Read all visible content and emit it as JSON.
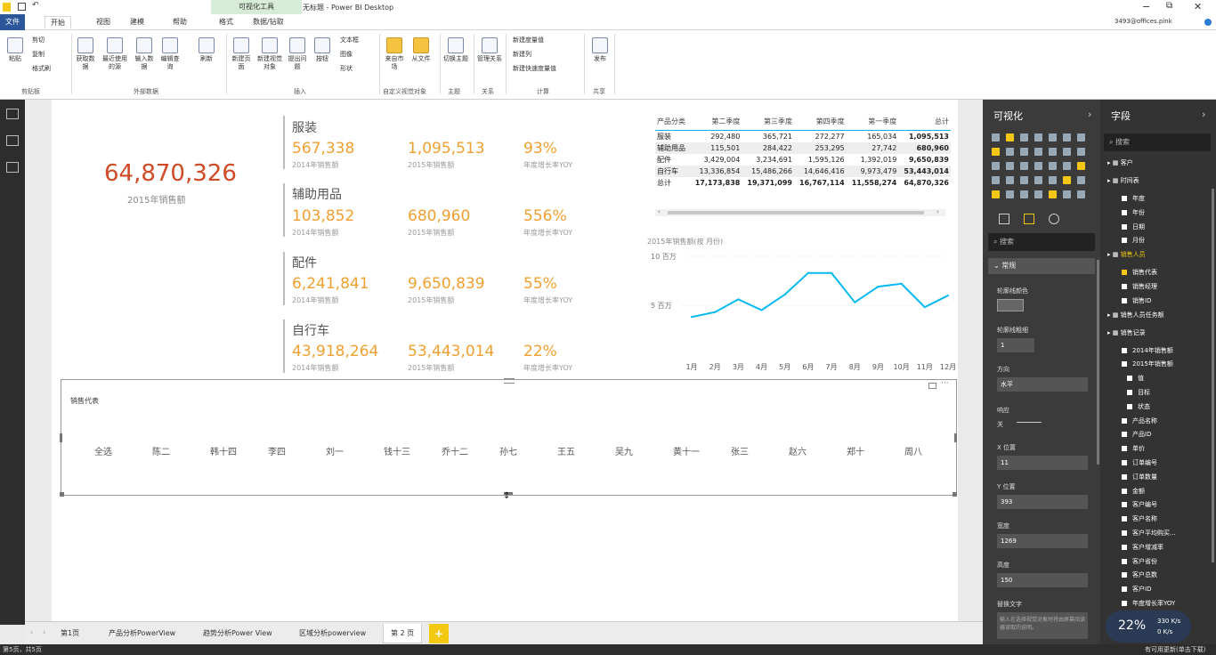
{
  "window": {
    "title": "无标题 - Power BI Desktop",
    "tools_label": "可视化工具",
    "user": "3493@offices.pink",
    "minimize": "−",
    "restore": "⧉",
    "close": "✕"
  },
  "ribbon_tabs": [
    "文件",
    "开始",
    "视图",
    "建模",
    "帮助",
    "格式",
    "数据/钻取"
  ],
  "ribbon": {
    "clipboard": {
      "paste": "粘贴",
      "cut": "剪切",
      "copy": "复制",
      "format_painter": "格式刷",
      "group": "剪贴板"
    },
    "external": {
      "get_data": "获取数据",
      "recent": "最近使用的源",
      "enter": "输入数据",
      "edit": "编辑查询",
      "refresh": "刷新",
      "group": "外部数据"
    },
    "insert": {
      "new_page": "新建页面",
      "new_visual": "新建视觉对象",
      "ask": "提出问题",
      "button": "按钮",
      "textbox": "文本框",
      "image": "图像",
      "shapes": "形状",
      "group": "插入"
    },
    "custom": {
      "market": "来自市场",
      "file": "从文件",
      "group": "自定义视觉对象"
    },
    "theme": {
      "switch": "切换主题",
      "group": "主题"
    },
    "relations": {
      "manage": "管理关系",
      "group": "关系"
    },
    "calc": {
      "measure": "新建度量值",
      "column": "新建列",
      "quick": "新建快速度量值",
      "group": "计算"
    },
    "share": {
      "publish": "发布",
      "group": "共享"
    }
  },
  "kpi": {
    "value": "64,870,326",
    "label": "2015年销售额"
  },
  "categories": [
    {
      "name": "服装",
      "v2014": "567,338",
      "v2015": "1,095,513",
      "yoy": "93%"
    },
    {
      "name": "辅助用品",
      "v2014": "103,852",
      "v2015": "680,960",
      "yoy": "556%"
    },
    {
      "name": "配件",
      "v2014": "6,241,841",
      "v2015": "9,650,839",
      "yoy": "55%"
    },
    {
      "name": "自行车",
      "v2014": "43,918,264",
      "v2015": "53,443,014",
      "yoy": "22%"
    }
  ],
  "labels": {
    "s2014": "2014年销售额",
    "s2015": "2015年销售额",
    "yoy": "年度增长率YOY"
  },
  "matrix": {
    "headers": [
      "产品分类",
      "第二季度",
      "第三季度",
      "第四季度",
      "第一季度",
      "总计"
    ],
    "rows": [
      [
        "服装",
        "292,480",
        "365,721",
        "272,277",
        "165,034",
        "1,095,513"
      ],
      [
        "辅助用品",
        "115,501",
        "284,422",
        "253,295",
        "27,742",
        "680,960"
      ],
      [
        "配件",
        "3,429,004",
        "3,234,691",
        "1,595,126",
        "1,392,019",
        "9,650,839"
      ],
      [
        "自行车",
        "13,336,854",
        "15,486,266",
        "14,646,416",
        "9,973,479",
        "53,443,014"
      ],
      [
        "总计",
        "17,173,838",
        "19,371,099",
        "16,767,114",
        "11,558,274",
        "64,870,326"
      ]
    ]
  },
  "chart_data": {
    "type": "line",
    "title": "2015年销售额(按 月份)",
    "x": [
      "1月",
      "2月",
      "3月",
      "4月",
      "5月",
      "6月",
      "7月",
      "8月",
      "9月",
      "10月",
      "11月",
      "12月"
    ],
    "y_ticks": [
      "10 百万",
      "5 百万"
    ],
    "ylim": [
      0,
      10000000
    ],
    "series": [
      {
        "values": [
          3800000,
          4300000,
          5600000,
          4500000,
          6100000,
          8300000,
          8300000,
          5300000,
          6900000,
          7200000,
          4800000,
          6000000
        ]
      }
    ],
    "color": "#01b8f2"
  },
  "slicer": {
    "title": "销售代表",
    "items": [
      "全选",
      "陈二",
      "韩十四",
      "李四",
      "刘一",
      "钱十三",
      "乔十二",
      "孙七",
      "王五",
      "吴九",
      "黄十一",
      "张三",
      "赵六",
      "郑十",
      "周八"
    ]
  },
  "page_tabs": [
    "第1页",
    "产品分析PowerView",
    "趋势分析Power View",
    "区域分析powerview",
    "第 2 页",
    "+"
  ],
  "status": {
    "left": "第5页，共5页",
    "right": "有可用更新(单击下载)"
  },
  "viz_pane": {
    "title": "可视化",
    "search": "搜索",
    "section": "常规",
    "props": [
      {
        "label": "轮廓线颜色",
        "value": ""
      },
      {
        "label": "轮廓线粗细",
        "value": "1"
      },
      {
        "label": "方向",
        "value": "水平"
      },
      {
        "label": "响应",
        "value": "关"
      },
      {
        "label": "X 位置",
        "value": "11"
      },
      {
        "label": "Y 位置",
        "value": "393"
      },
      {
        "label": "宽度",
        "value": "1269"
      },
      {
        "label": "高度",
        "value": "150"
      },
      {
        "label": "替换文字",
        "value": "输入在选择视觉对象时将由屏幕阅读器读取的说明。"
      }
    ]
  },
  "fields_pane": {
    "title": "字段",
    "search": "搜索",
    "items": [
      {
        "t": "group",
        "label": "客户"
      },
      {
        "t": "group",
        "label": "时间表"
      },
      {
        "t": "item",
        "label": "年度"
      },
      {
        "t": "item",
        "label": "年份"
      },
      {
        "t": "item",
        "label": "日期"
      },
      {
        "t": "item",
        "label": "月份"
      },
      {
        "t": "group",
        "label": "销售人员",
        "hl": true
      },
      {
        "t": "item",
        "label": "销售代表",
        "checked": true
      },
      {
        "t": "item",
        "label": "销售经理"
      },
      {
        "t": "item",
        "label": "销售ID"
      },
      {
        "t": "group",
        "label": "销售人员任务额"
      },
      {
        "t": "group",
        "label": "销售记录"
      },
      {
        "t": "item",
        "label": "2014年销售额"
      },
      {
        "t": "item",
        "label": "2015年销售额"
      },
      {
        "t": "sub",
        "label": "值"
      },
      {
        "t": "sub",
        "label": "目标"
      },
      {
        "t": "sub",
        "label": "状态"
      },
      {
        "t": "item",
        "label": "产品名称"
      },
      {
        "t": "item",
        "label": "产品ID"
      },
      {
        "t": "item",
        "label": "单价"
      },
      {
        "t": "item",
        "label": "订单编号"
      },
      {
        "t": "item",
        "label": "订单数量"
      },
      {
        "t": "item",
        "label": "金额"
      },
      {
        "t": "item",
        "label": "客户编号"
      },
      {
        "t": "item",
        "label": "客户名称"
      },
      {
        "t": "item",
        "label": "客户平均购买..."
      },
      {
        "t": "item",
        "label": "客户增减率"
      },
      {
        "t": "item",
        "label": "客户省份"
      },
      {
        "t": "item",
        "label": "客户总数"
      },
      {
        "t": "item",
        "label": "客户ID"
      },
      {
        "t": "item",
        "label": "年度增长率YOY"
      }
    ]
  },
  "net_widget": {
    "percent": "22%",
    "up": "330 K/s",
    "down": "0 K/s"
  }
}
